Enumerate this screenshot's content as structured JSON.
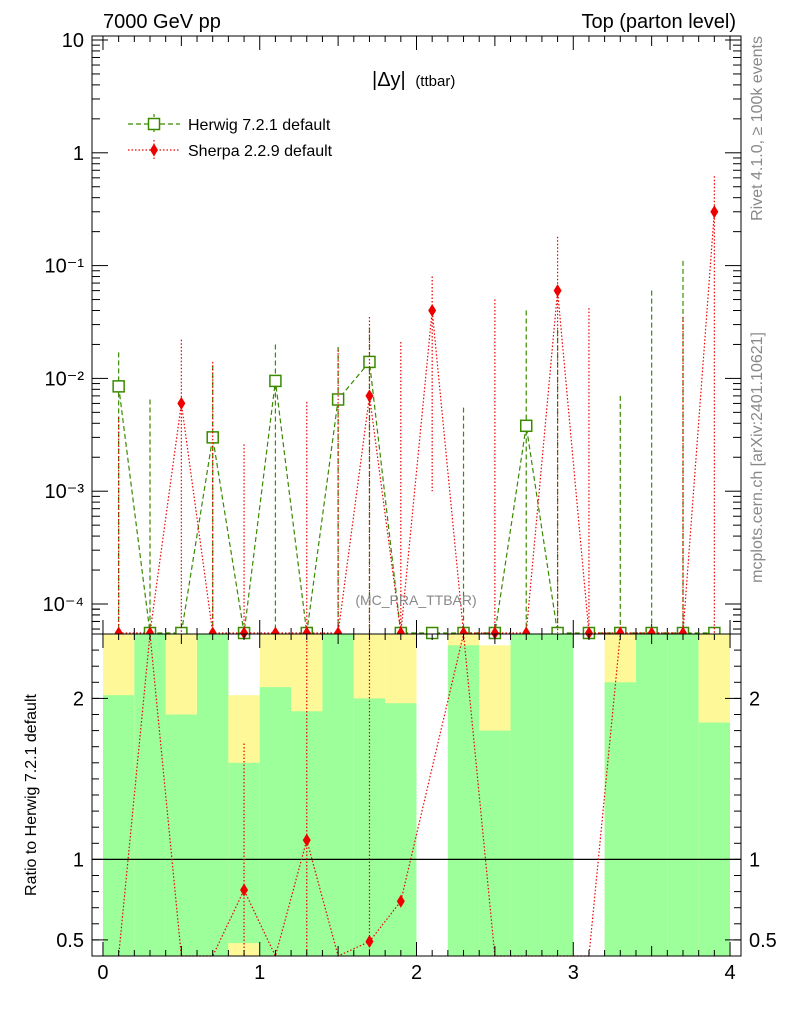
{
  "header": {
    "left": "7000 GeV pp",
    "right": "Top (parton level)"
  },
  "side": {
    "rivet": "Rivet 4.1.0, ≥ 100k events",
    "mcplots": "mcplots.cern.ch [arXiv:2401.10621]"
  },
  "plot": {
    "title_main": "|Δy|",
    "title_sub": "(ttbar)",
    "analysis": "(MC_PRA_TTBAR)"
  },
  "legend": [
    {
      "label": "Herwig 7.2.1 default",
      "color": "#3a8a00",
      "marker": "open-square",
      "line": "dashed"
    },
    {
      "label": "Sherpa 2.2.9 default",
      "color": "#ee0000",
      "marker": "diamond",
      "line": "dotted"
    }
  ],
  "chart_data": [
    {
      "type": "line",
      "panel": "main",
      "yscale": "log",
      "xlim": [
        -0.07,
        4.07
      ],
      "ylim": [
        5e-05,
        10
      ],
      "ytick_labels": [
        "10",
        "1",
        "10⁻¹",
        "10⁻²",
        "10⁻³",
        "10⁻⁴"
      ],
      "x": [
        0.1,
        0.3,
        0.5,
        0.7,
        0.9,
        1.1,
        1.3,
        1.5,
        1.7,
        1.9,
        2.1,
        2.3,
        2.5,
        2.7,
        2.9,
        3.1,
        3.3,
        3.5,
        3.7,
        3.9
      ],
      "series": [
        {
          "name": "Herwig 7.2.1 default",
          "values": [
            0.0085,
            0,
            0,
            0.003,
            0,
            0.0095,
            0,
            0.0065,
            0.014,
            0,
            0,
            0,
            0,
            0.0038,
            0,
            0,
            0,
            0,
            0,
            0
          ],
          "err_up": [
            0.017,
            0.0065,
            0,
            0.013,
            0,
            0.02,
            0,
            0.019,
            0.028,
            0,
            0,
            0.0055,
            0,
            0.04,
            0.027,
            0,
            0.007,
            0.06,
            0.11,
            0
          ]
        },
        {
          "name": "Sherpa 2.2.9 default",
          "values": [
            0,
            0,
            0.006,
            0,
            0,
            0,
            0,
            0,
            0.007,
            0,
            0.04,
            0,
            0,
            0,
            0.06,
            0,
            0,
            0,
            0,
            0.3
          ],
          "err_up": [
            0.0045,
            0,
            0.022,
            0.014,
            0.0026,
            0,
            0.0062,
            0.018,
            0.035,
            0.021,
            0.08,
            0,
            0.05,
            0,
            0.18,
            0.042,
            0,
            0,
            0.035,
            0.62
          ],
          "err_down": [
            0,
            0,
            0,
            0,
            0,
            0,
            0,
            0,
            0,
            0,
            0.001,
            0,
            0,
            0,
            0,
            0,
            0,
            0,
            0,
            0
          ]
        }
      ]
    },
    {
      "type": "line",
      "panel": "ratio",
      "ylabel": "Ratio to Herwig 7.2.1 default",
      "xlabel": "",
      "xlim": [
        -0.07,
        4.07
      ],
      "ylim": [
        0.4,
        2.4
      ],
      "yticks": [
        0.5,
        1,
        2
      ],
      "ytick_labels": [
        "0.5",
        "1",
        "2"
      ],
      "xticks": [
        0,
        1,
        2,
        3,
        4
      ],
      "xtick_labels": [
        "0",
        "1",
        "2",
        "3",
        "4"
      ],
      "reference_line": 1,
      "band_bins": [
        {
          "x0": 0.0,
          "x1": 0.2,
          "green_hi": 2.02,
          "yellow_hi": 2.4
        },
        {
          "x0": 0.2,
          "x1": 0.4,
          "green_hi": 2.4,
          "yellow_hi": 2.4
        },
        {
          "x0": 0.4,
          "x1": 0.6,
          "green_hi": 1.9,
          "yellow_hi": 2.4
        },
        {
          "x0": 0.6,
          "x1": 0.8,
          "green_hi": 2.4,
          "yellow_hi": 2.4
        },
        {
          "x0": 0.8,
          "x1": 1.0,
          "green_hi": 1.6,
          "yellow_hi": 2.02,
          "green_lo": 0.48,
          "yellow_lo": 0.4
        },
        {
          "x0": 1.0,
          "x1": 1.2,
          "green_hi": 2.07,
          "yellow_hi": 2.4
        },
        {
          "x0": 1.2,
          "x1": 1.4,
          "green_hi": 1.92,
          "yellow_hi": 2.4
        },
        {
          "x0": 1.4,
          "x1": 1.6,
          "green_hi": 2.4,
          "yellow_hi": 2.4
        },
        {
          "x0": 1.6,
          "x1": 1.8,
          "green_hi": 2.0,
          "yellow_hi": 2.4
        },
        {
          "x0": 1.8,
          "x1": 2.0,
          "green_hi": 1.97,
          "yellow_hi": 2.4
        },
        {
          "x0": 2.2,
          "x1": 2.4,
          "green_hi": 2.33,
          "yellow_hi": 2.4
        },
        {
          "x0": 2.4,
          "x1": 2.6,
          "green_hi": 1.8,
          "yellow_hi": 2.33
        },
        {
          "x0": 2.6,
          "x1": 2.8,
          "green_hi": 2.4,
          "yellow_hi": 2.4
        },
        {
          "x0": 2.8,
          "x1": 3.0,
          "green_hi": 2.4,
          "yellow_hi": 2.4
        },
        {
          "x0": 3.2,
          "x1": 3.4,
          "green_hi": 2.1,
          "yellow_hi": 2.4
        },
        {
          "x0": 3.4,
          "x1": 3.6,
          "green_hi": 2.4,
          "yellow_hi": 2.4
        },
        {
          "x0": 3.6,
          "x1": 3.8,
          "green_hi": 2.4,
          "yellow_hi": 2.4
        },
        {
          "x0": 3.8,
          "x1": 4.0,
          "green_hi": 1.85,
          "yellow_hi": 2.4
        }
      ],
      "series": [
        {
          "name": "Sherpa 2.2.9 default",
          "points": [
            {
              "x": 0.9,
              "y": 0.81,
              "err_up": 1.72
            },
            {
              "x": 1.3,
              "y": 1.12,
              "err_up": 2.4
            },
            {
              "x": 1.7,
              "y": 0.49,
              "err_up": 2.4
            },
            {
              "x": 1.9,
              "y": 0.74
            }
          ],
          "line_x": [
            0.1,
            0.3,
            0.5,
            0.7,
            0.9,
            1.1,
            1.3,
            1.5,
            1.7,
            1.9,
            2.3,
            2.5,
            2.9,
            3.1,
            3.3
          ],
          "line_y": [
            0.4,
            2.4,
            0.4,
            0.4,
            0.81,
            0.4,
            1.12,
            0.4,
            0.49,
            0.74,
            2.4,
            0.4,
            0.4,
            0.4,
            2.4
          ]
        }
      ]
    }
  ]
}
